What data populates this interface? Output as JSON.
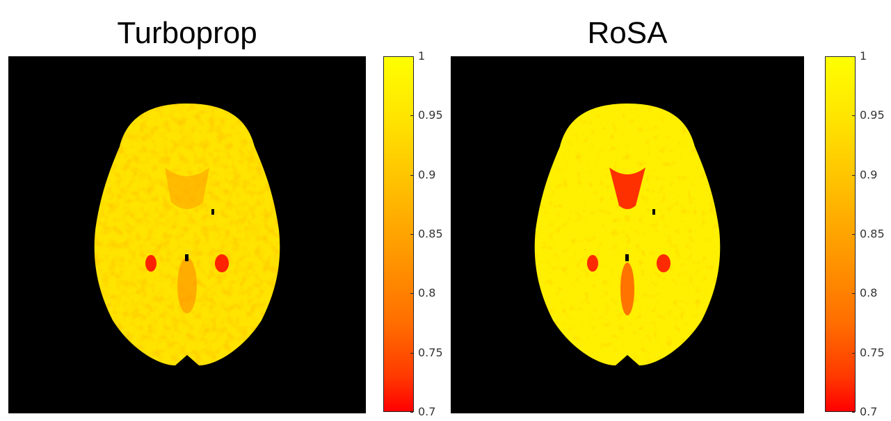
{
  "panels": [
    {
      "title": "Turboprop",
      "colorbar": {
        "min": 0.7,
        "max": 1,
        "colormap": "autumn (red to yellow)",
        "ticks": [
          "1",
          "0.95",
          "0.9",
          "0.85",
          "0.8",
          "0.75",
          "0.7"
        ]
      }
    },
    {
      "title": "RoSA",
      "colorbar": {
        "min": 0.7,
        "max": 1,
        "colormap": "autumn (red to yellow)",
        "ticks": [
          "1",
          "0.95",
          "0.9",
          "0.85",
          "0.8",
          "0.75",
          "0.7"
        ]
      }
    }
  ],
  "colors": {
    "background": "#000000",
    "high": "#ffff00",
    "mid": "#ff9a00",
    "low": "#ff0000"
  }
}
